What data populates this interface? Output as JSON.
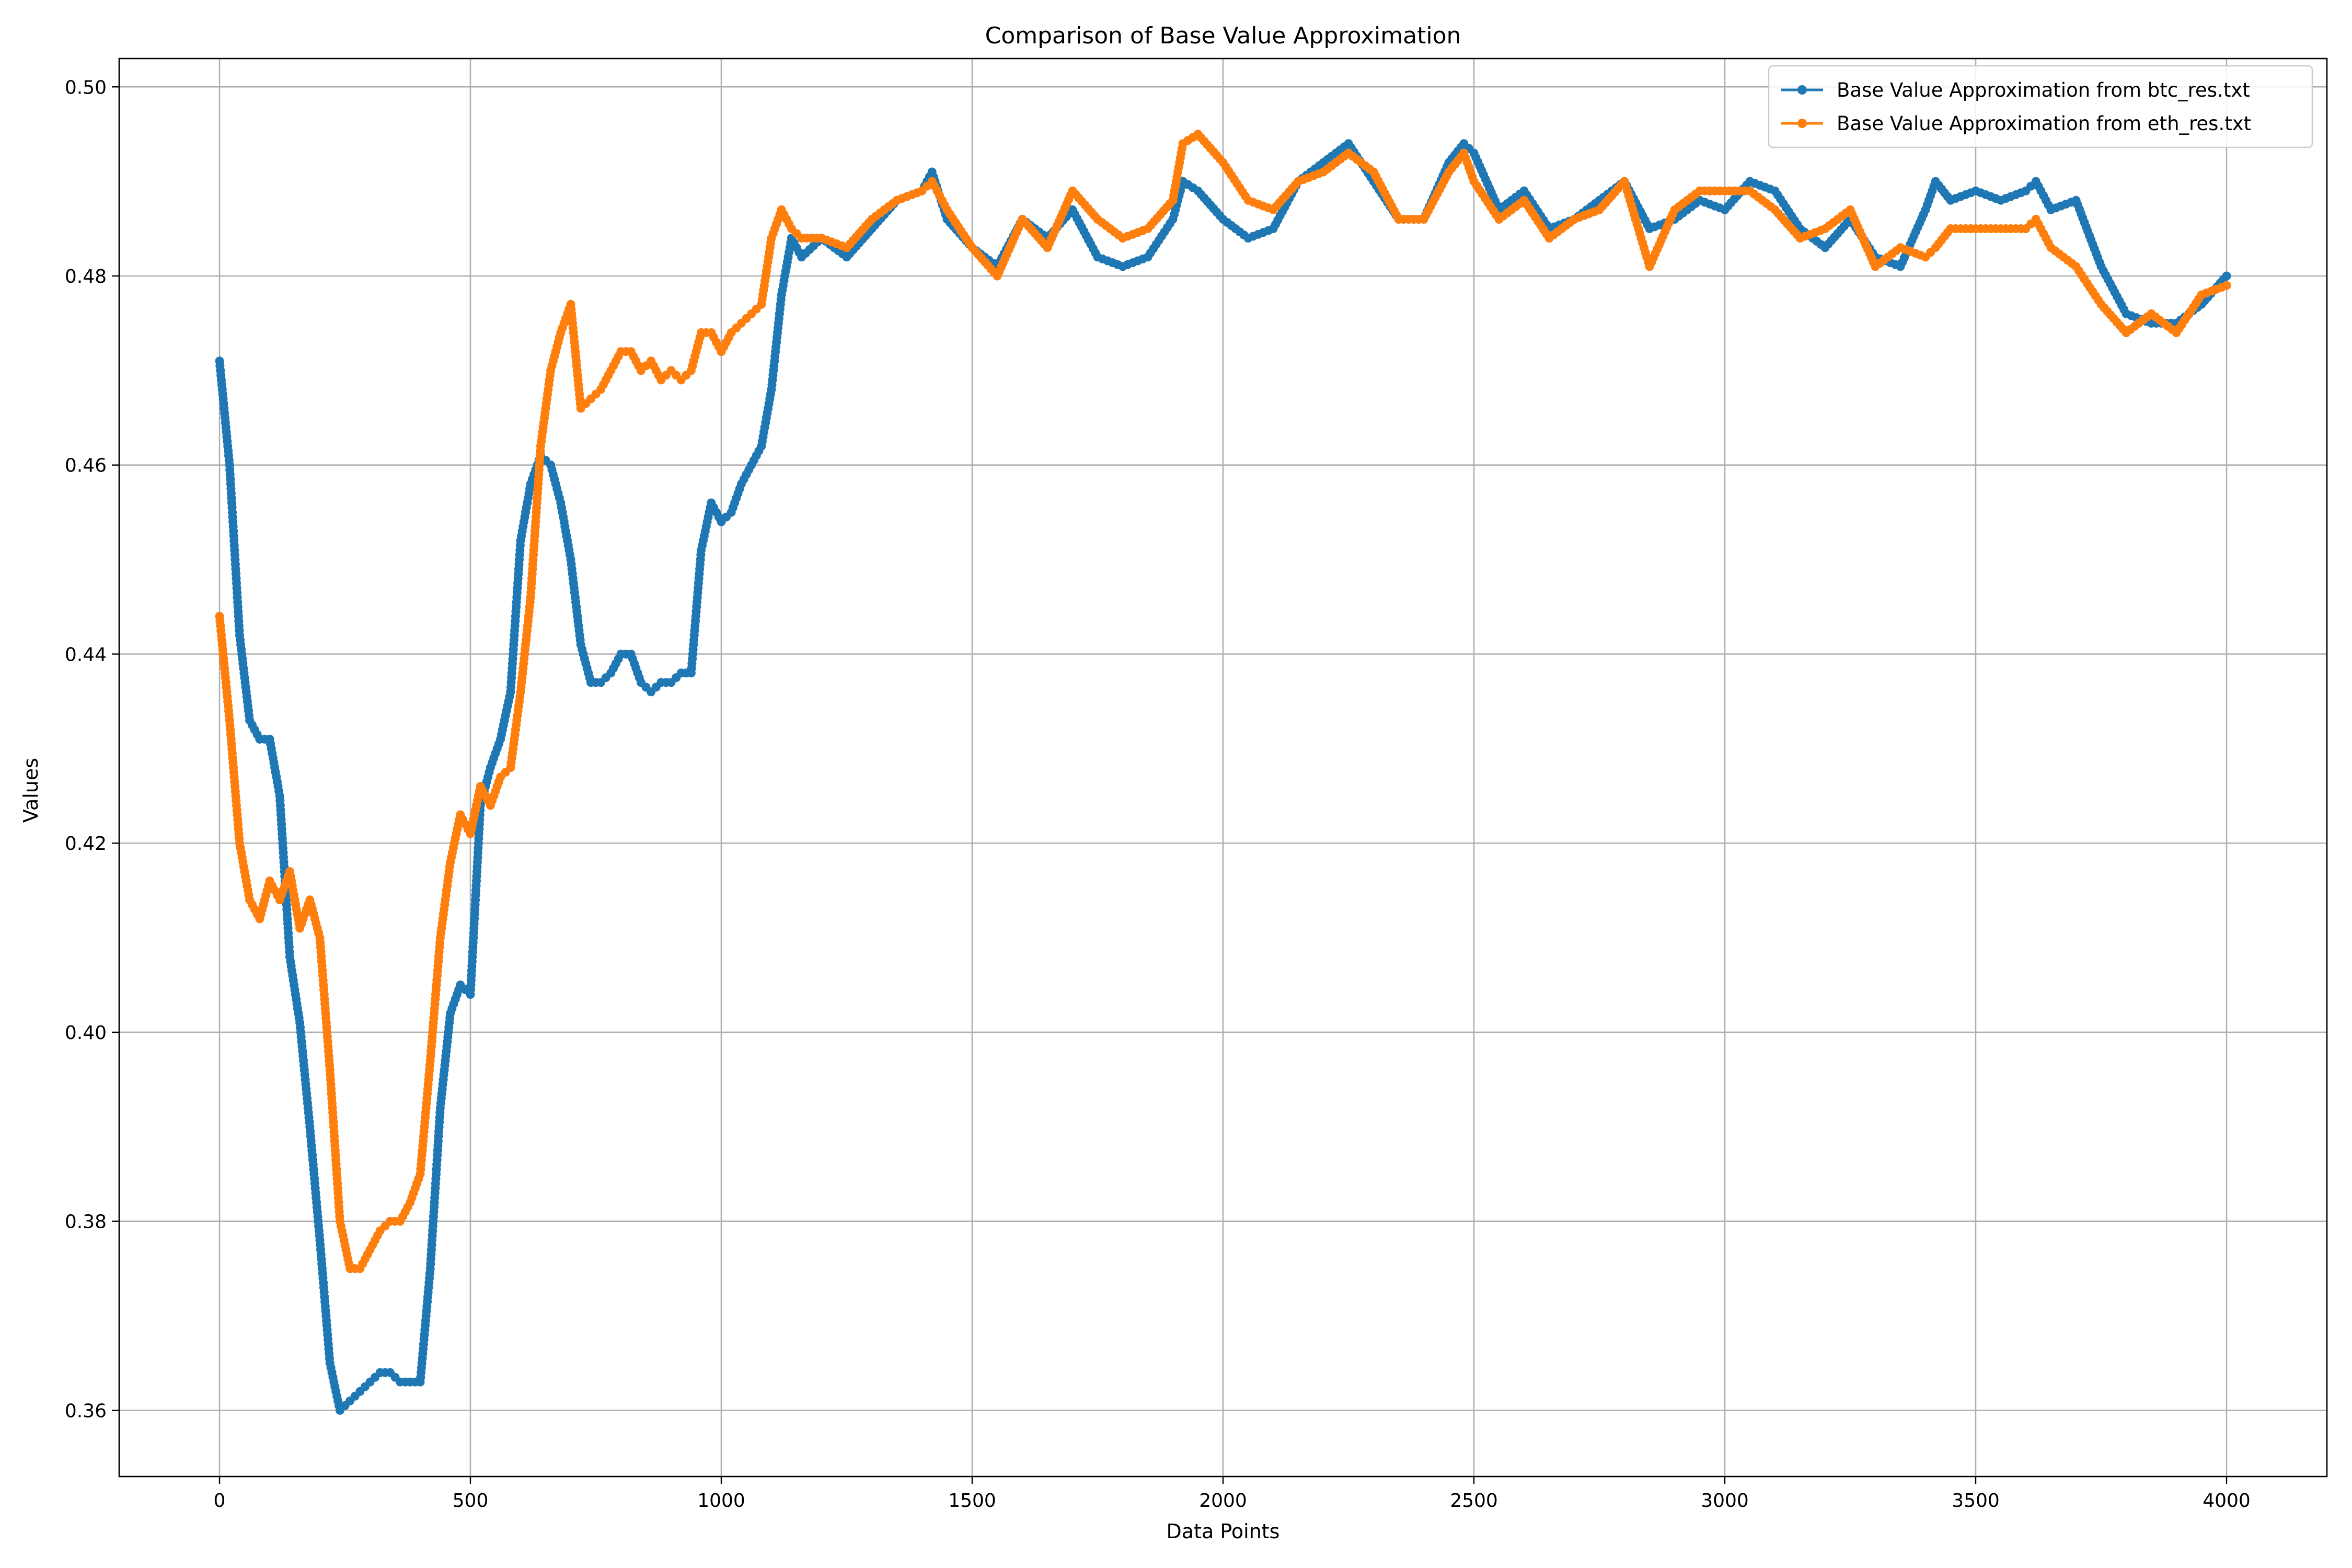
{
  "chart_data": {
    "type": "line",
    "title": "Comparison of Base Value Approximation",
    "xlabel": "Data Points",
    "ylabel": "Values",
    "xlim": [
      -200,
      4200
    ],
    "ylim": [
      0.353,
      0.503
    ],
    "xticks": [
      0,
      500,
      1000,
      1500,
      2000,
      2500,
      3000,
      3500,
      4000
    ],
    "yticks": [
      0.36,
      0.38,
      0.4,
      0.42,
      0.44,
      0.46,
      0.48,
      0.5
    ],
    "xtick_labels": [
      "0",
      "500",
      "1000",
      "1500",
      "2000",
      "2500",
      "3000",
      "3500",
      "4000"
    ],
    "ytick_labels": [
      "0.36",
      "0.38",
      "0.40",
      "0.42",
      "0.44",
      "0.46",
      "0.48",
      "0.50"
    ],
    "grid": true,
    "legend": "top-right",
    "marker": "circle",
    "series": [
      {
        "name": "Base Value Approximation from btc_res.txt",
        "color": "#1f77b4",
        "x": [
          0,
          20,
          40,
          60,
          80,
          100,
          120,
          140,
          160,
          180,
          200,
          220,
          240,
          260,
          280,
          300,
          320,
          340,
          360,
          380,
          400,
          420,
          440,
          460,
          480,
          500,
          520,
          540,
          560,
          580,
          600,
          620,
          640,
          660,
          680,
          700,
          720,
          740,
          760,
          780,
          800,
          820,
          840,
          860,
          880,
          900,
          920,
          940,
          960,
          980,
          1000,
          1020,
          1040,
          1060,
          1080,
          1100,
          1120,
          1140,
          1160,
          1200,
          1250,
          1300,
          1350,
          1400,
          1420,
          1450,
          1500,
          1550,
          1600,
          1650,
          1700,
          1750,
          1800,
          1850,
          1900,
          1920,
          1950,
          2000,
          2050,
          2100,
          2150,
          2200,
          2250,
          2300,
          2350,
          2400,
          2450,
          2480,
          2500,
          2550,
          2600,
          2650,
          2700,
          2750,
          2800,
          2850,
          2900,
          2950,
          3000,
          3050,
          3100,
          3150,
          3200,
          3250,
          3300,
          3350,
          3400,
          3420,
          3450,
          3500,
          3550,
          3600,
          3620,
          3650,
          3700,
          3750,
          3800,
          3850,
          3900,
          3950,
          4000
        ],
        "values": [
          0.471,
          0.46,
          0.442,
          0.433,
          0.431,
          0.431,
          0.425,
          0.408,
          0.401,
          0.39,
          0.378,
          0.365,
          0.36,
          0.361,
          0.362,
          0.363,
          0.364,
          0.364,
          0.363,
          0.363,
          0.363,
          0.375,
          0.392,
          0.402,
          0.405,
          0.404,
          0.424,
          0.428,
          0.431,
          0.436,
          0.452,
          0.458,
          0.461,
          0.46,
          0.456,
          0.45,
          0.441,
          0.437,
          0.437,
          0.438,
          0.44,
          0.44,
          0.437,
          0.436,
          0.437,
          0.437,
          0.438,
          0.438,
          0.451,
          0.456,
          0.454,
          0.455,
          0.458,
          0.46,
          0.462,
          0.468,
          0.478,
          0.484,
          0.482,
          0.484,
          0.482,
          0.485,
          0.488,
          0.489,
          0.491,
          0.486,
          0.483,
          0.481,
          0.486,
          0.484,
          0.487,
          0.482,
          0.481,
          0.482,
          0.486,
          0.49,
          0.489,
          0.486,
          0.484,
          0.485,
          0.49,
          0.492,
          0.494,
          0.49,
          0.486,
          0.486,
          0.492,
          0.494,
          0.493,
          0.487,
          0.489,
          0.485,
          0.486,
          0.488,
          0.49,
          0.485,
          0.486,
          0.488,
          0.487,
          0.49,
          0.489,
          0.485,
          0.483,
          0.486,
          0.482,
          0.481,
          0.487,
          0.49,
          0.488,
          0.489,
          0.488,
          0.489,
          0.49,
          0.487,
          0.488,
          0.481,
          0.476,
          0.475,
          0.475,
          0.477,
          0.48
        ]
      },
      {
        "name": "Base Value Approximation from eth_res.txt",
        "color": "#ff7f0e",
        "x": [
          0,
          20,
          40,
          60,
          80,
          100,
          120,
          140,
          160,
          180,
          200,
          220,
          240,
          260,
          280,
          300,
          320,
          340,
          360,
          380,
          400,
          420,
          440,
          460,
          480,
          500,
          520,
          540,
          560,
          580,
          600,
          620,
          640,
          660,
          680,
          700,
          720,
          740,
          760,
          780,
          800,
          820,
          840,
          860,
          880,
          900,
          920,
          940,
          960,
          980,
          1000,
          1020,
          1040,
          1060,
          1080,
          1100,
          1120,
          1140,
          1160,
          1200,
          1250,
          1300,
          1350,
          1400,
          1420,
          1450,
          1500,
          1550,
          1600,
          1650,
          1700,
          1750,
          1800,
          1850,
          1900,
          1920,
          1950,
          2000,
          2050,
          2100,
          2150,
          2200,
          2250,
          2300,
          2350,
          2400,
          2450,
          2480,
          2500,
          2550,
          2600,
          2650,
          2700,
          2750,
          2800,
          2850,
          2900,
          2950,
          3000,
          3050,
          3100,
          3150,
          3200,
          3250,
          3300,
          3350,
          3400,
          3420,
          3450,
          3500,
          3550,
          3600,
          3620,
          3650,
          3700,
          3750,
          3800,
          3850,
          3900,
          3950,
          4000
        ],
        "values": [
          0.444,
          0.433,
          0.42,
          0.414,
          0.412,
          0.416,
          0.414,
          0.417,
          0.411,
          0.414,
          0.41,
          0.396,
          0.38,
          0.375,
          0.375,
          0.377,
          0.379,
          0.38,
          0.38,
          0.382,
          0.385,
          0.397,
          0.41,
          0.418,
          0.423,
          0.421,
          0.426,
          0.424,
          0.427,
          0.428,
          0.436,
          0.446,
          0.462,
          0.47,
          0.474,
          0.477,
          0.466,
          0.467,
          0.468,
          0.47,
          0.472,
          0.472,
          0.47,
          0.471,
          0.469,
          0.47,
          0.469,
          0.47,
          0.474,
          0.474,
          0.472,
          0.474,
          0.475,
          0.476,
          0.477,
          0.484,
          0.487,
          0.485,
          0.484,
          0.484,
          0.483,
          0.486,
          0.488,
          0.489,
          0.49,
          0.487,
          0.483,
          0.48,
          0.486,
          0.483,
          0.489,
          0.486,
          0.484,
          0.485,
          0.488,
          0.494,
          0.495,
          0.492,
          0.488,
          0.487,
          0.49,
          0.491,
          0.493,
          0.491,
          0.486,
          0.486,
          0.491,
          0.493,
          0.49,
          0.486,
          0.488,
          0.484,
          0.486,
          0.487,
          0.49,
          0.481,
          0.487,
          0.489,
          0.489,
          0.489,
          0.487,
          0.484,
          0.485,
          0.487,
          0.481,
          0.483,
          0.482,
          0.483,
          0.485,
          0.485,
          0.485,
          0.485,
          0.486,
          0.483,
          0.481,
          0.477,
          0.474,
          0.476,
          0.474,
          0.478,
          0.479
        ]
      }
    ]
  }
}
